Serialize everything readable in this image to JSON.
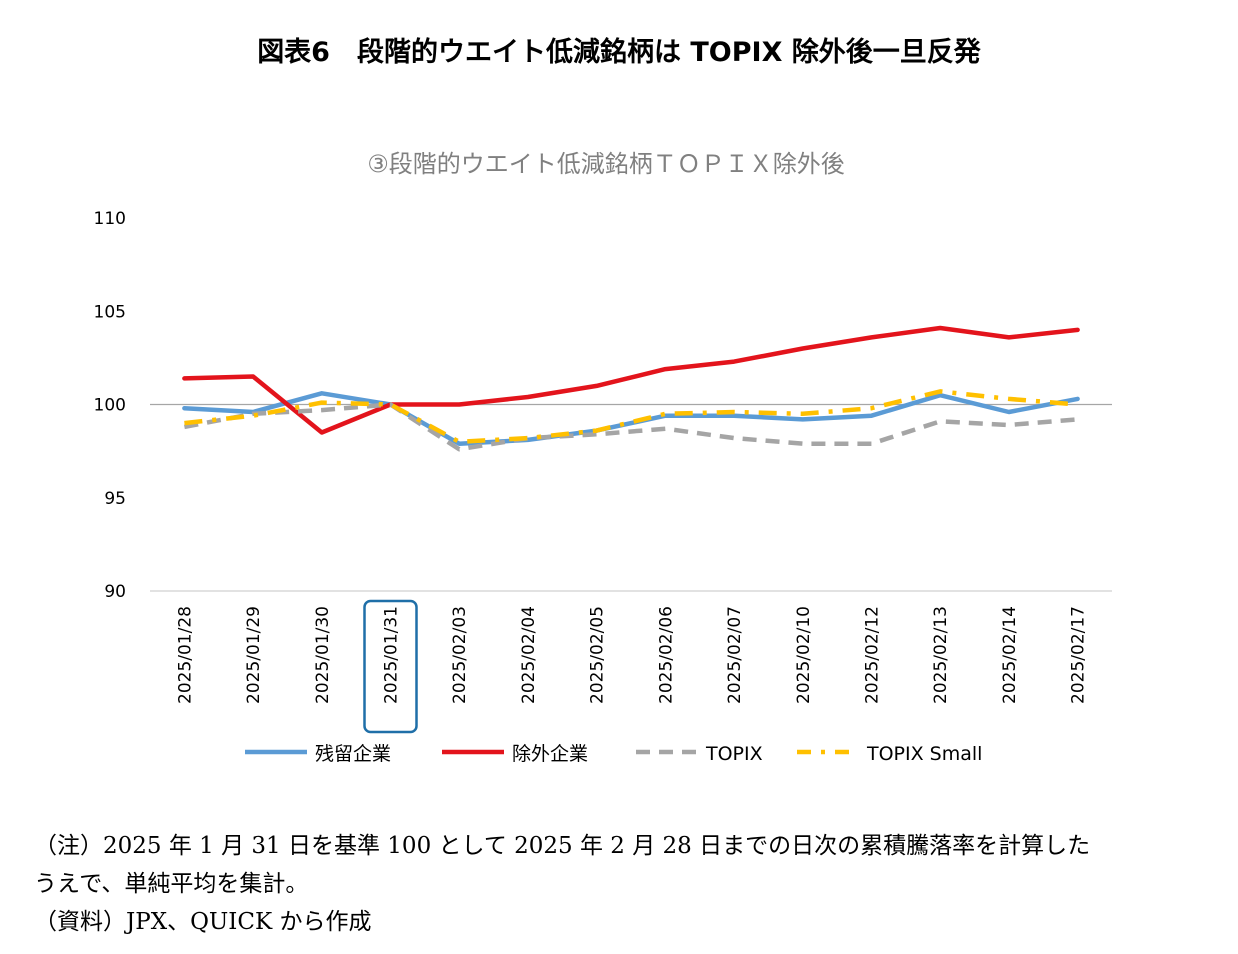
{
  "figure_title": "図表6　段階的ウエイト低減銘柄は TOPIX 除外後一旦反発",
  "colors": {
    "residual": "#5B9BD5",
    "excluded": "#E3141C",
    "topix": "#A5A5A5",
    "topix_small": "#FFC000",
    "highlight_box": "#1F6FA8",
    "baseline": "#A6A6A6"
  },
  "chart_data": {
    "type": "line",
    "title": "③段階的ウエイト低減銘柄ＴＯＰＩＸ除外後",
    "xlabel": "",
    "ylabel": "",
    "ylim": [
      90,
      110
    ],
    "yticks": [
      90,
      95,
      100,
      105,
      110
    ],
    "categories": [
      "2025/01/28",
      "2025/01/29",
      "2025/01/30",
      "2025/01/31",
      "2025/02/03",
      "2025/02/04",
      "2025/02/05",
      "2025/02/06",
      "2025/02/07",
      "2025/02/10",
      "2025/02/12",
      "2025/02/13",
      "2025/02/14",
      "2025/02/17"
    ],
    "highlight_category": "2025/01/31",
    "reference_line": 100,
    "legend_position": "bottom",
    "grid": false,
    "series": [
      {
        "name": "残留企業",
        "key": "residual",
        "style": "solid",
        "values": [
          99.8,
          99.6,
          100.6,
          100.0,
          97.9,
          98.1,
          98.6,
          99.4,
          99.4,
          99.2,
          99.4,
          100.5,
          99.6,
          100.3
        ]
      },
      {
        "name": "除外企業",
        "key": "excluded",
        "style": "solid",
        "values": [
          101.4,
          101.5,
          98.5,
          100.0,
          100.0,
          100.4,
          101.0,
          101.9,
          102.3,
          103.0,
          103.6,
          104.1,
          103.6,
          104.0
        ]
      },
      {
        "name": "TOPIX",
        "key": "topix",
        "style": "dashed",
        "values": [
          98.8,
          99.5,
          99.7,
          100.0,
          97.6,
          98.2,
          98.4,
          98.7,
          98.2,
          97.9,
          97.9,
          99.1,
          98.9,
          99.2
        ]
      },
      {
        "name": "TOPIX Small",
        "key": "topix_small",
        "style": "dashdot",
        "values": [
          99.0,
          99.4,
          100.1,
          100.0,
          98.0,
          98.2,
          98.6,
          99.5,
          99.6,
          99.5,
          99.8,
          100.7,
          100.3,
          100.0
        ]
      }
    ]
  },
  "notes": {
    "line1": "（注）2025 年 1 月 31 日を基準 100 として 2025 年 2 月 28 日までの日次の累積騰落率を計算した",
    "line2": "うえで、単純平均を集計。",
    "line3": "（資料）JPX、QUICK から作成"
  }
}
